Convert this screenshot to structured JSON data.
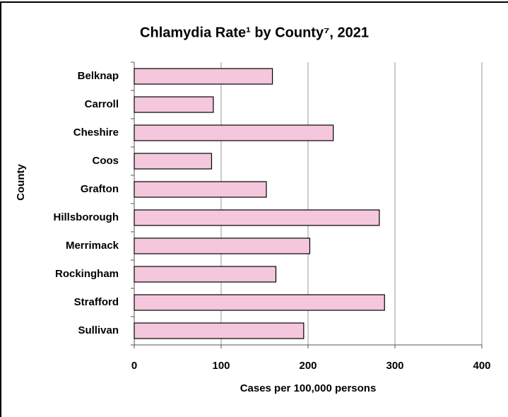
{
  "chart_data": {
    "type": "bar",
    "orientation": "horizontal",
    "title": "Chlamydia Rate¹ by County⁷, 2021",
    "x_label": "Cases per 100,000 persons",
    "y_label": "County",
    "categories": [
      "Belknap",
      "Carroll",
      "Cheshire",
      "Coos",
      "Grafton",
      "Hillsborough",
      "Merrimack",
      "Rockingham",
      "Strafford",
      "Sullivan"
    ],
    "values": [
      159,
      91,
      229,
      89,
      152,
      282,
      202,
      163,
      288,
      195
    ],
    "color": "#f4c7dd",
    "xlim": [
      0,
      400
    ],
    "xticks": [
      0,
      100,
      200,
      300,
      400
    ],
    "grid": true
  }
}
